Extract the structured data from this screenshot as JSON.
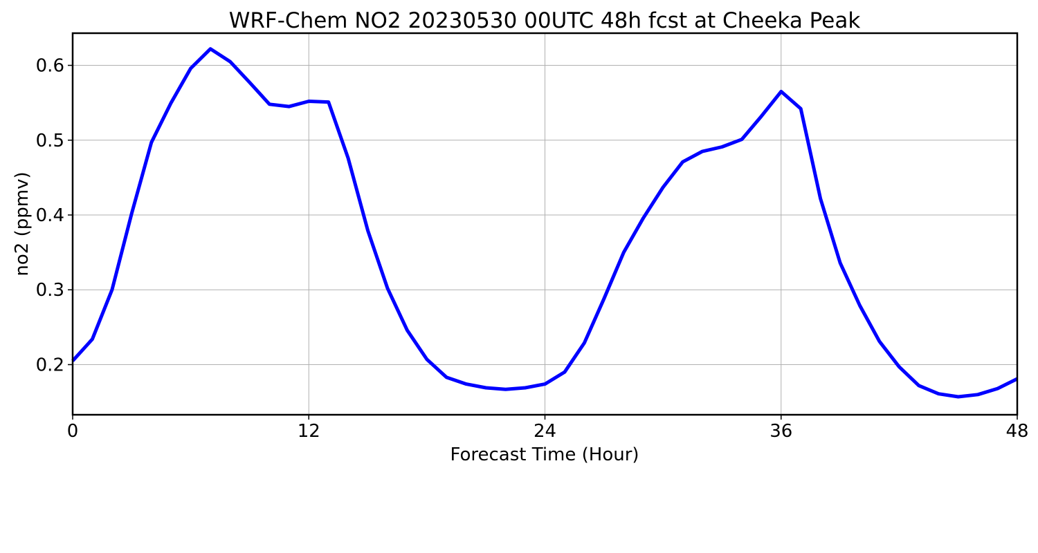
{
  "chart_data": {
    "type": "line",
    "title": "WRF-Chem NO2  20230530 00UTC 48h fcst at Cheeka Peak",
    "xlabel": "Forecast Time (Hour)",
    "ylabel": "no2  (ppmv)",
    "xlim": [
      0,
      48
    ],
    "ylim": [
      0.133,
      0.643
    ],
    "xticks": [
      0,
      12,
      24,
      36,
      48
    ],
    "xtick_labels": [
      "0",
      "12",
      "24",
      "36",
      "48"
    ],
    "yticks": [
      0.2,
      0.3,
      0.4,
      0.5,
      0.6
    ],
    "ytick_labels": [
      "0.2",
      "0.3",
      "0.4",
      "0.5",
      "0.6"
    ],
    "grid": true,
    "series": [
      {
        "color": "#0000ff",
        "x": [
          0,
          1,
          2,
          3,
          4,
          5,
          6,
          7,
          8,
          9,
          10,
          11,
          12,
          13,
          14,
          15,
          16,
          17,
          18,
          19,
          20,
          21,
          22,
          23,
          24,
          25,
          26,
          27,
          28,
          29,
          30,
          31,
          32,
          33,
          34,
          35,
          36,
          37,
          38,
          39,
          40,
          41,
          42,
          43,
          44,
          45,
          46,
          47,
          48
        ],
        "values": [
          0.205,
          0.234,
          0.3,
          0.402,
          0.497,
          0.55,
          0.596,
          0.622,
          0.605,
          0.577,
          0.548,
          0.545,
          0.552,
          0.551,
          0.476,
          0.379,
          0.302,
          0.246,
          0.207,
          0.183,
          0.174,
          0.169,
          0.167,
          0.169,
          0.174,
          0.19,
          0.229,
          0.288,
          0.35,
          0.396,
          0.437,
          0.471,
          0.485,
          0.491,
          0.501,
          0.532,
          0.565,
          0.542,
          0.422,
          0.336,
          0.279,
          0.231,
          0.197,
          0.172,
          0.161,
          0.157,
          0.16,
          0.168,
          0.181
        ]
      }
    ]
  }
}
